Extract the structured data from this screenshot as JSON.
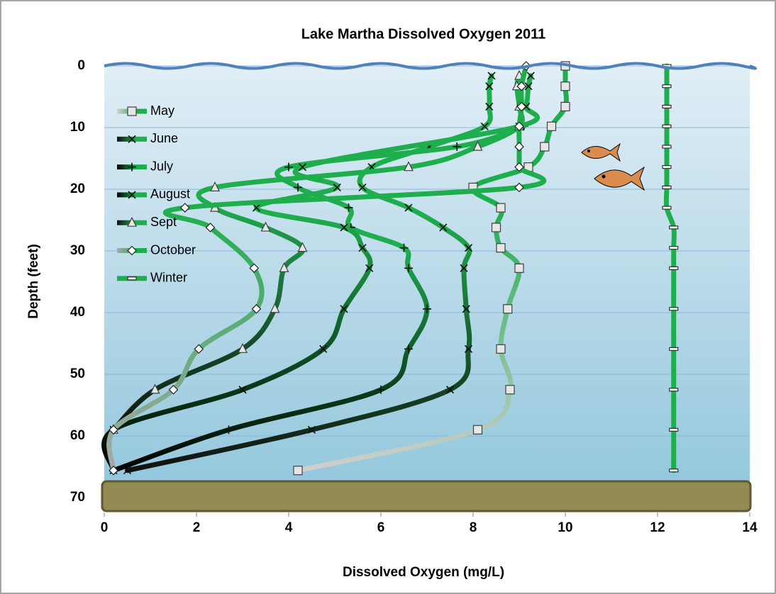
{
  "chart_data": {
    "type": "line",
    "title": "Lake Martha Dissolved Oxygen 2011",
    "x_label": "Dissolved Oxygen (mg/L)",
    "y_label": "Depth (feet)",
    "xlim": [
      0,
      14
    ],
    "xticks": [
      0,
      2,
      4,
      6,
      8,
      10,
      12,
      14
    ],
    "ylim": [
      70,
      0
    ],
    "yticks": [
      0,
      10,
      20,
      30,
      40,
      50,
      60,
      70
    ],
    "grid": true,
    "legend": "upper left",
    "series": [
      {
        "name": "May",
        "color": "#1fae4e",
        "deep_color": "#cfcfcf",
        "marker": "square",
        "depths": [
          0,
          3.3,
          6.6,
          9.8,
          13.1,
          16.4,
          19.7,
          23,
          26.2,
          29.5,
          32.8,
          39.4,
          45.9,
          52.5,
          59,
          65.6
        ],
        "values": [
          10.0,
          10.0,
          10.0,
          9.7,
          9.55,
          9.2,
          8.0,
          8.6,
          8.5,
          8.6,
          9.0,
          8.75,
          8.6,
          8.8,
          8.1,
          4.2
        ]
      },
      {
        "name": "June",
        "color": "#1fae4e",
        "deep_color": "#111111",
        "marker": "x",
        "depths": [
          1.6,
          3.3,
          6.6,
          9.8,
          13.1,
          16.4,
          19.7,
          23,
          26.2,
          29.5,
          32.8,
          39.4,
          45.9,
          52.5,
          59,
          65.6
        ],
        "values": [
          8.4,
          8.35,
          8.35,
          8.25,
          7.05,
          5.8,
          5.6,
          6.6,
          7.35,
          7.9,
          7.8,
          7.85,
          7.9,
          7.5,
          4.5,
          0.5
        ]
      },
      {
        "name": "July",
        "color": "#1fae4e",
        "deep_color": "#000000",
        "marker": "plus",
        "depths": [
          9.8,
          13.1,
          16.4,
          19.7,
          23,
          26.2,
          29.5,
          32.8,
          39.4,
          45.9,
          52.5,
          59,
          65.6
        ],
        "values": [
          9.1,
          7.65,
          4.0,
          4.2,
          5.3,
          5.35,
          6.5,
          6.6,
          7.0,
          6.6,
          6.0,
          2.7,
          0.2
        ]
      },
      {
        "name": "August",
        "color": "#1fae4e",
        "deep_color": "#000000",
        "marker": "x",
        "depths": [
          1.6,
          3.3,
          6.6,
          9.8,
          16.4,
          19.7,
          23,
          26.2,
          29.5,
          32.8,
          39.4,
          45.9,
          52.5,
          59,
          65.6
        ],
        "values": [
          9.25,
          9.2,
          9.15,
          9.0,
          4.3,
          5.05,
          3.3,
          5.2,
          5.6,
          5.75,
          5.2,
          4.75,
          3.0,
          0.2,
          0.2
        ]
      },
      {
        "name": "Sept",
        "color": "#1fae4e",
        "deep_color": "#111111",
        "marker": "triangle",
        "depths": [
          1.6,
          3.3,
          6.6,
          9.8,
          13.1,
          16.4,
          19.7,
          23,
          26.2,
          29.5,
          32.8,
          39.4,
          45.9,
          52.5,
          59
        ],
        "values": [
          9.0,
          8.95,
          9.0,
          9.0,
          8.1,
          6.6,
          2.4,
          2.4,
          3.5,
          4.3,
          3.9,
          3.7,
          3.0,
          1.1,
          0.2
        ]
      },
      {
        "name": "October",
        "color": "#1fae4e",
        "deep_color": "#a9a9a9",
        "marker": "diamond",
        "depths": [
          0,
          3.3,
          6.6,
          9.8,
          13.1,
          16.4,
          19.7,
          23,
          26.2,
          32.8,
          39.4,
          45.9,
          52.5,
          59,
          65.6
        ],
        "values": [
          9.15,
          9.05,
          9.05,
          9.0,
          9.0,
          9.0,
          9.0,
          1.75,
          2.3,
          3.25,
          3.3,
          2.05,
          1.5,
          0.2,
          0.2
        ]
      },
      {
        "name": "Winter",
        "color": "#1fae4e",
        "deep_color": "#1fae4e",
        "marker": "dash",
        "depths": [
          0,
          3.3,
          6.6,
          9.8,
          13.1,
          16.4,
          19.7,
          23,
          26.2,
          29.5,
          32.8,
          39.4,
          45.9,
          52.5,
          59,
          65.6
        ],
        "values": [
          12.2,
          12.2,
          12.2,
          12.2,
          12.2,
          12.2,
          12.2,
          12.2,
          12.35,
          12.35,
          12.35,
          12.35,
          12.35,
          12.35,
          12.35,
          12.35
        ]
      }
    ]
  }
}
